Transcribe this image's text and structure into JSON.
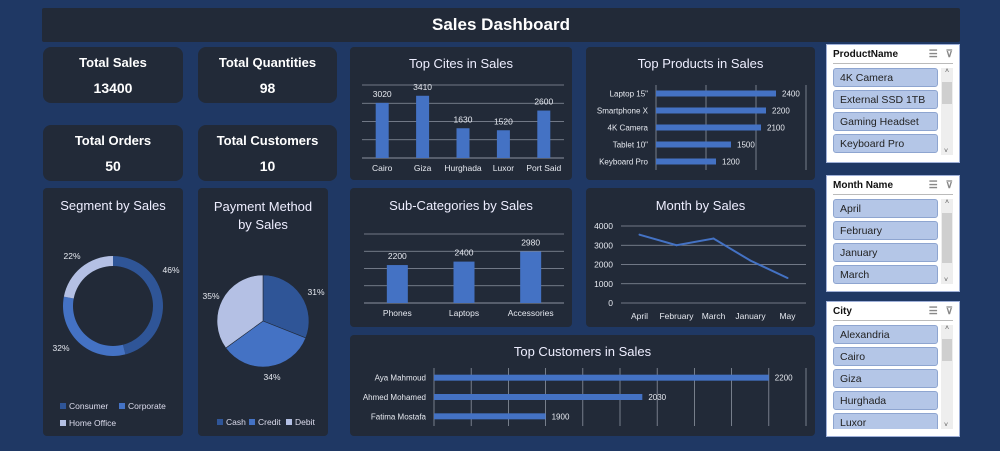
{
  "title": "Sales Dashboard",
  "kpis": [
    {
      "label": "Total Sales",
      "value": "13400"
    },
    {
      "label": "Total Quantities",
      "value": "98"
    },
    {
      "label": "Total Orders",
      "value": "50"
    },
    {
      "label": "Total Customers",
      "value": "10"
    }
  ],
  "colors": {
    "bar": "#4472c4",
    "dark": "#2f5597",
    "light": "#b4c0e4",
    "grid": "#8c93a0"
  },
  "chart_data": [
    {
      "id": "cities",
      "type": "bar",
      "title": "Top Cites in Sales",
      "categories": [
        "Cairo",
        "Giza",
        "Hurghada",
        "Luxor",
        "Port Said"
      ],
      "values": [
        3020,
        3410,
        1630,
        1520,
        2600
      ],
      "ylim": [
        0,
        4000
      ],
      "grid": true
    },
    {
      "id": "products",
      "type": "bar",
      "orientation": "horizontal",
      "title": "Top Products in Sales",
      "categories": [
        "Laptop 15\"",
        "Smartphone X",
        "4K Camera",
        "Tablet 10\"",
        "Keyboard Pro"
      ],
      "values": [
        2400,
        2200,
        2100,
        1500,
        1200
      ],
      "xlim": [
        0,
        3000
      ],
      "grid": true
    },
    {
      "id": "segment",
      "type": "pie",
      "donut": true,
      "title": "Segment by Sales",
      "categories": [
        "Consumer",
        "Corporate",
        "Home Office"
      ],
      "values": [
        46,
        32,
        22
      ],
      "labels": [
        "46%",
        "32%",
        "22%"
      ],
      "legend": "bottom"
    },
    {
      "id": "payment",
      "type": "pie",
      "title": "Payment Method by Sales",
      "categories": [
        "Cash",
        "Credit",
        "Debit"
      ],
      "values": [
        31,
        34,
        35
      ],
      "labels": [
        "31%",
        "34%",
        "35%"
      ],
      "legend": "bottom"
    },
    {
      "id": "subcat",
      "type": "bar",
      "title": "Sub-Categories by Sales",
      "categories": [
        "Phones",
        "Laptops",
        "Accessories"
      ],
      "values": [
        2200,
        2400,
        2980
      ],
      "ylim": [
        0,
        4000
      ],
      "grid": true
    },
    {
      "id": "month",
      "type": "line",
      "title": "Month by Sales",
      "categories": [
        "April",
        "February",
        "March",
        "January",
        "May"
      ],
      "values": [
        3550,
        3000,
        3350,
        2200,
        1300
      ],
      "ylim": [
        0,
        4000
      ],
      "yticks": [
        "0",
        "1000",
        "2000",
        "3000",
        "4000"
      ],
      "grid": true
    },
    {
      "id": "customers",
      "type": "bar",
      "orientation": "horizontal",
      "title": "Top Customers in Sales",
      "categories": [
        "Aya Mahmoud",
        "Ahmed Mohamed",
        "Fatima Mostafa"
      ],
      "values": [
        2200,
        2030,
        1900
      ],
      "xlim": [
        1750,
        2250
      ],
      "grid": true
    }
  ],
  "slicers": [
    {
      "title": "ProductName",
      "items": [
        "4K Camera",
        "External SSD 1TB",
        "Gaming Headset",
        "Keyboard Pro"
      ]
    },
    {
      "title": "Month Name",
      "items": [
        "April",
        "February",
        "January",
        "March"
      ]
    },
    {
      "title": "City",
      "items": [
        "Alexandria",
        "Cairo",
        "Giza",
        "Hurghada",
        "Luxor"
      ]
    }
  ]
}
